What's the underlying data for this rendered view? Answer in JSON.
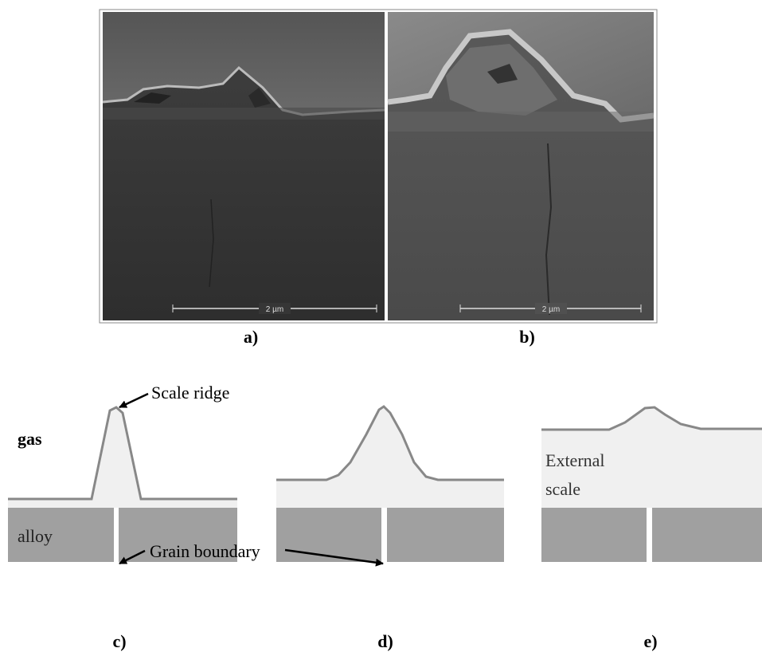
{
  "figure": {
    "panels": [
      {
        "label": "a)",
        "scale_bar": "2 µm"
      },
      {
        "label": "b)",
        "scale_bar": "2 µm"
      },
      {
        "label": "c)"
      },
      {
        "label": "d)"
      },
      {
        "label": "e)"
      }
    ],
    "annotations": {
      "scale_ridge": "Scale ridge",
      "gas": "gas",
      "alloy": "alloy",
      "grain_boundary": "Grain boundary",
      "external_scale": [
        "External",
        "scale"
      ]
    }
  }
}
